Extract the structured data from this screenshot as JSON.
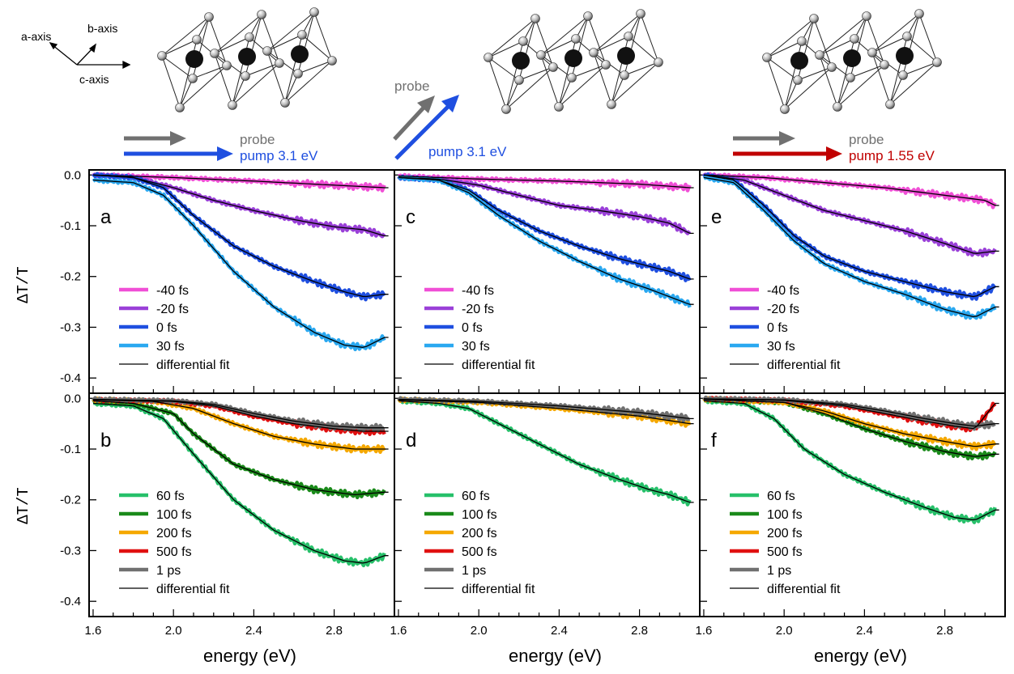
{
  "header": {
    "axes": {
      "a": "a-axis",
      "b": "b-axis",
      "c": "c-axis"
    },
    "columns": [
      {
        "probe": "probe",
        "pump": "pump 3.1 eV",
        "pump_color": "#1f4fe0",
        "probe_dir": "parallel"
      },
      {
        "probe": "probe",
        "pump": "pump 3.1 eV",
        "pump_color": "#1f4fe0",
        "probe_dir": "perpendicular"
      },
      {
        "probe": "probe",
        "pump": "pump 1.55 eV",
        "pump_color": "#c00000",
        "probe_dir": "parallel"
      }
    ],
    "probe_color": "#707070"
  },
  "chart_data": [
    {
      "type": "line",
      "panel": "a",
      "xlabel": "energy (eV)",
      "ylabel": "ΔT/T",
      "xlim": [
        1.58,
        3.1
      ],
      "ylim": [
        -0.43,
        0.01
      ],
      "xticks": [
        "1.6",
        "2.0",
        "2.4",
        "2.8"
      ],
      "yticks": [
        "0.0",
        "-0.1",
        "-0.2",
        "-0.3",
        "-0.4"
      ],
      "series": [
        {
          "name": "-40 fs",
          "color": "#f04fd6",
          "x": [
            1.6,
            2.0,
            2.4,
            2.8,
            3.05
          ],
          "y": [
            0.0,
            -0.005,
            -0.012,
            -0.02,
            -0.025
          ]
        },
        {
          "name": "-20 fs",
          "color": "#9a40d8",
          "x": [
            1.6,
            1.8,
            2.0,
            2.2,
            2.4,
            2.6,
            2.8,
            2.95,
            3.05
          ],
          "y": [
            0.0,
            -0.005,
            -0.025,
            -0.05,
            -0.07,
            -0.088,
            -0.102,
            -0.108,
            -0.12
          ]
        },
        {
          "name": "0 fs",
          "color": "#1f4fe0",
          "x": [
            1.6,
            1.8,
            1.95,
            2.1,
            2.3,
            2.5,
            2.7,
            2.85,
            2.95,
            3.05
          ],
          "y": [
            0.0,
            -0.005,
            -0.025,
            -0.08,
            -0.14,
            -0.18,
            -0.21,
            -0.23,
            -0.24,
            -0.235
          ]
        },
        {
          "name": "30 fs",
          "color": "#2aa8f0",
          "x": [
            1.6,
            1.8,
            1.95,
            2.1,
            2.3,
            2.5,
            2.7,
            2.85,
            2.95,
            3.05
          ],
          "y": [
            -0.01,
            -0.015,
            -0.04,
            -0.1,
            -0.19,
            -0.26,
            -0.31,
            -0.335,
            -0.34,
            -0.32
          ]
        },
        {
          "name": "differential fit",
          "color": "#000000",
          "fit": true
        }
      ]
    },
    {
      "type": "line",
      "panel": "b",
      "xlabel": "energy (eV)",
      "ylabel": "ΔT/T",
      "xlim": [
        1.58,
        3.1
      ],
      "ylim": [
        -0.43,
        0.01
      ],
      "xticks": [
        "1.6",
        "2.0",
        "2.4",
        "2.8"
      ],
      "yticks": [
        "0.0",
        "-0.1",
        "-0.2",
        "-0.3",
        "-0.4"
      ],
      "series": [
        {
          "name": "60 fs",
          "color": "#27c06a",
          "x": [
            1.6,
            1.8,
            1.95,
            2.1,
            2.3,
            2.5,
            2.7,
            2.85,
            2.95,
            3.05
          ],
          "y": [
            -0.01,
            -0.015,
            -0.04,
            -0.11,
            -0.2,
            -0.26,
            -0.3,
            -0.32,
            -0.325,
            -0.31
          ]
        },
        {
          "name": "100 fs",
          "color": "#1a8a1a",
          "x": [
            1.6,
            1.8,
            2.0,
            2.1,
            2.3,
            2.5,
            2.7,
            2.9,
            3.05
          ],
          "y": [
            -0.005,
            -0.01,
            -0.03,
            -0.07,
            -0.13,
            -0.16,
            -0.18,
            -0.19,
            -0.185
          ]
        },
        {
          "name": "200 fs",
          "color": "#f5a800",
          "x": [
            1.6,
            1.9,
            2.1,
            2.3,
            2.5,
            2.7,
            2.9,
            3.05
          ],
          "y": [
            -0.003,
            -0.006,
            -0.02,
            -0.05,
            -0.075,
            -0.09,
            -0.1,
            -0.1
          ]
        },
        {
          "name": "500 fs",
          "color": "#e01010",
          "x": [
            1.6,
            2.0,
            2.2,
            2.4,
            2.6,
            2.8,
            2.95,
            3.05
          ],
          "y": [
            -0.003,
            -0.006,
            -0.015,
            -0.035,
            -0.05,
            -0.06,
            -0.065,
            -0.065
          ]
        },
        {
          "name": "1 ps",
          "color": "#707070",
          "x": [
            1.6,
            2.0,
            2.2,
            2.4,
            2.6,
            2.8,
            2.95,
            3.05
          ],
          "y": [
            -0.002,
            -0.005,
            -0.012,
            -0.03,
            -0.045,
            -0.055,
            -0.058,
            -0.058
          ]
        },
        {
          "name": "differential fit",
          "color": "#000000",
          "fit": true
        }
      ]
    },
    {
      "type": "line",
      "panel": "c",
      "xlabel": "energy (eV)",
      "ylabel": "",
      "xlim": [
        1.58,
        3.1
      ],
      "ylim": [
        -0.43,
        0.01
      ],
      "xticks": [
        "1.6",
        "2.0",
        "2.4",
        "2.8"
      ],
      "yticks": [],
      "series": [
        {
          "name": "-40 fs",
          "color": "#f04fd6",
          "x": [
            1.6,
            2.0,
            2.4,
            2.8,
            3.05
          ],
          "y": [
            -0.002,
            -0.008,
            -0.012,
            -0.018,
            -0.025
          ]
        },
        {
          "name": "-20 fs",
          "color": "#9a40d8",
          "x": [
            1.6,
            1.8,
            2.0,
            2.2,
            2.4,
            2.6,
            2.8,
            2.95,
            3.05
          ],
          "y": [
            -0.005,
            -0.008,
            -0.02,
            -0.04,
            -0.06,
            -0.07,
            -0.082,
            -0.095,
            -0.115
          ]
        },
        {
          "name": "0 fs",
          "color": "#1f4fe0",
          "x": [
            1.6,
            1.8,
            1.95,
            2.1,
            2.3,
            2.5,
            2.7,
            2.85,
            2.95,
            3.05
          ],
          "y": [
            -0.005,
            -0.01,
            -0.03,
            -0.07,
            -0.11,
            -0.14,
            -0.165,
            -0.18,
            -0.19,
            -0.205
          ]
        },
        {
          "name": "30 fs",
          "color": "#2aa8f0",
          "x": [
            1.6,
            1.8,
            1.95,
            2.1,
            2.3,
            2.5,
            2.7,
            2.85,
            2.95,
            3.05
          ],
          "y": [
            -0.005,
            -0.01,
            -0.035,
            -0.08,
            -0.13,
            -0.17,
            -0.205,
            -0.225,
            -0.24,
            -0.255
          ]
        },
        {
          "name": "differential fit",
          "color": "#000000",
          "fit": true
        }
      ]
    },
    {
      "type": "line",
      "panel": "d",
      "xlabel": "energy (eV)",
      "ylabel": "",
      "xlim": [
        1.58,
        3.1
      ],
      "ylim": [
        -0.43,
        0.01
      ],
      "xticks": [
        "1.6",
        "2.0",
        "2.4",
        "2.8"
      ],
      "yticks": [],
      "series": [
        {
          "name": "60 fs",
          "color": "#27c06a",
          "x": [
            1.6,
            1.8,
            1.95,
            2.1,
            2.3,
            2.5,
            2.7,
            2.85,
            2.95,
            3.05
          ],
          "y": [
            -0.005,
            -0.01,
            -0.02,
            -0.05,
            -0.09,
            -0.13,
            -0.16,
            -0.18,
            -0.19,
            -0.205
          ]
        },
        {
          "name": "100 fs",
          "color": "#1a8a1a",
          "x": [],
          "y": []
        },
        {
          "name": "200 fs",
          "color": "#f5a800",
          "x": [
            1.6,
            2.0,
            2.4,
            2.8,
            3.05
          ],
          "y": [
            -0.003,
            -0.008,
            -0.02,
            -0.035,
            -0.05
          ]
        },
        {
          "name": "500 fs",
          "color": "#e01010",
          "x": [],
          "y": []
        },
        {
          "name": "1 ps",
          "color": "#707070",
          "x": [
            1.6,
            2.0,
            2.4,
            2.8,
            3.05
          ],
          "y": [
            -0.002,
            -0.006,
            -0.015,
            -0.028,
            -0.04
          ]
        },
        {
          "name": "differential fit",
          "color": "#000000",
          "fit": true
        }
      ]
    },
    {
      "type": "line",
      "panel": "e",
      "xlabel": "energy (eV)",
      "ylabel": "",
      "xlim": [
        1.58,
        3.1
      ],
      "ylim": [
        -0.43,
        0.01
      ],
      "xticks": [
        "1.6",
        "2.0",
        "2.4",
        "2.8"
      ],
      "yticks": [],
      "series": [
        {
          "name": "-40 fs",
          "color": "#f04fd6",
          "x": [
            1.6,
            1.9,
            2.2,
            2.5,
            2.8,
            3.0,
            3.05
          ],
          "y": [
            0.0,
            -0.005,
            -0.015,
            -0.025,
            -0.04,
            -0.05,
            -0.06
          ]
        },
        {
          "name": "-20 fs",
          "color": "#9a40d8",
          "x": [
            1.6,
            1.8,
            2.0,
            2.2,
            2.4,
            2.6,
            2.8,
            2.95,
            3.05
          ],
          "y": [
            0.0,
            -0.01,
            -0.04,
            -0.07,
            -0.09,
            -0.11,
            -0.135,
            -0.155,
            -0.15
          ]
        },
        {
          "name": "0 fs",
          "color": "#1f4fe0",
          "x": [
            1.6,
            1.75,
            1.9,
            2.05,
            2.2,
            2.4,
            2.6,
            2.8,
            2.95,
            3.05
          ],
          "y": [
            0.0,
            -0.01,
            -0.06,
            -0.12,
            -0.16,
            -0.19,
            -0.21,
            -0.23,
            -0.24,
            -0.22
          ]
        },
        {
          "name": "30 fs",
          "color": "#2aa8f0",
          "x": [
            1.6,
            1.75,
            1.9,
            2.05,
            2.2,
            2.4,
            2.6,
            2.8,
            2.95,
            3.05
          ],
          "y": [
            -0.005,
            -0.015,
            -0.07,
            -0.13,
            -0.175,
            -0.21,
            -0.235,
            -0.265,
            -0.28,
            -0.26
          ]
        },
        {
          "name": "differential fit",
          "color": "#000000",
          "fit": true
        }
      ]
    },
    {
      "type": "line",
      "panel": "f",
      "xlabel": "energy (eV)",
      "ylabel": "",
      "xlim": [
        1.58,
        3.1
      ],
      "ylim": [
        -0.43,
        0.01
      ],
      "xticks": [
        "1.6",
        "2.0",
        "2.4",
        "2.8"
      ],
      "yticks": [],
      "series": [
        {
          "name": "60 fs",
          "color": "#27c06a",
          "x": [
            1.6,
            1.8,
            1.95,
            2.1,
            2.3,
            2.5,
            2.7,
            2.85,
            2.95,
            3.05
          ],
          "y": [
            -0.005,
            -0.01,
            -0.04,
            -0.1,
            -0.15,
            -0.185,
            -0.215,
            -0.235,
            -0.24,
            -0.22
          ]
        },
        {
          "name": "100 fs",
          "color": "#1a8a1a",
          "x": [
            1.6,
            2.0,
            2.2,
            2.4,
            2.6,
            2.8,
            2.95,
            3.05
          ],
          "y": [
            -0.002,
            -0.008,
            -0.03,
            -0.06,
            -0.085,
            -0.105,
            -0.115,
            -0.11
          ]
        },
        {
          "name": "200 fs",
          "color": "#f5a800",
          "x": [
            1.6,
            2.0,
            2.2,
            2.4,
            2.6,
            2.8,
            2.95,
            3.05
          ],
          "y": [
            -0.002,
            -0.008,
            -0.025,
            -0.05,
            -0.07,
            -0.085,
            -0.095,
            -0.09
          ]
        },
        {
          "name": "500 fs",
          "color": "#e01010",
          "x": [
            1.6,
            2.0,
            2.3,
            2.5,
            2.7,
            2.85,
            2.95,
            3.05
          ],
          "y": [
            -0.001,
            -0.004,
            -0.015,
            -0.03,
            -0.045,
            -0.055,
            -0.06,
            -0.01
          ]
        },
        {
          "name": "1 ps",
          "color": "#707070",
          "x": [
            1.6,
            2.0,
            2.3,
            2.5,
            2.7,
            2.85,
            2.95,
            3.05
          ],
          "y": [
            -0.001,
            -0.003,
            -0.012,
            -0.025,
            -0.04,
            -0.05,
            -0.055,
            -0.05
          ]
        },
        {
          "name": "differential fit",
          "color": "#000000",
          "fit": true
        }
      ]
    }
  ]
}
